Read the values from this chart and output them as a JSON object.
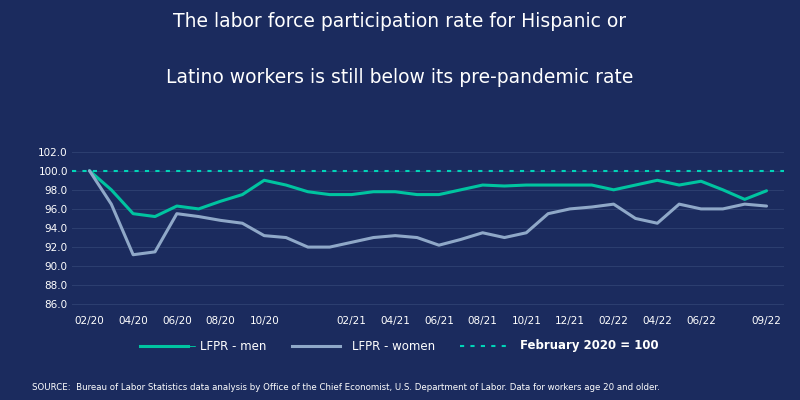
{
  "title_line1": "The labor force participation rate for Hispanic or",
  "title_line2": "Latino workers is still below its pre-pandemic rate",
  "source_text": "SOURCE:  Bureau of Labor Statistics data analysis by Office of the Chief Economist, U.S. Department of Labor. Data for workers age 20 and older.",
  "background_color": "#1b2b5e",
  "title_color": "#ffffff",
  "grid_color": "#2d3f70",
  "tick_label_color": "#ffffff",
  "men_color": "#00c4a0",
  "women_color": "#8fa8c8",
  "ref_color": "#00d4b8",
  "line_width": 2.2,
  "yticks": [
    86.0,
    88.0,
    90.0,
    92.0,
    94.0,
    96.0,
    98.0,
    100.0,
    102.0
  ],
  "ylim_low": 85.2,
  "ylim_high": 102.8,
  "men_data": [
    100.0,
    98.0,
    95.5,
    95.2,
    96.3,
    96.0,
    96.8,
    97.5,
    99.0,
    98.5,
    97.8,
    97.5,
    97.5,
    97.8,
    97.8,
    97.5,
    97.5,
    98.0,
    98.5,
    98.4,
    98.5,
    98.5,
    98.5,
    98.5,
    98.0,
    98.5,
    99.0,
    98.5,
    98.9,
    98.0,
    97.0,
    97.9
  ],
  "women_data": [
    100.0,
    96.5,
    91.2,
    91.5,
    95.5,
    95.2,
    94.8,
    94.5,
    93.2,
    93.0,
    92.0,
    92.0,
    92.5,
    93.0,
    93.2,
    93.0,
    92.2,
    92.8,
    93.5,
    93.0,
    93.5,
    95.5,
    96.0,
    96.2,
    96.5,
    95.0,
    94.5,
    96.5,
    96.0,
    96.0,
    96.5,
    96.3
  ],
  "xtick_pos": [
    0,
    2,
    4,
    6,
    8,
    12,
    14,
    16,
    18,
    20,
    22,
    24,
    26,
    28,
    31
  ],
  "xtick_labels": [
    "02/20",
    "04/20",
    "06/20",
    "08/20",
    "10/20",
    "02/21",
    "04/21",
    "06/21",
    "08/21",
    "10/21",
    "12/21",
    "02/22",
    "04/22",
    "06/22",
    "09/22"
  ]
}
